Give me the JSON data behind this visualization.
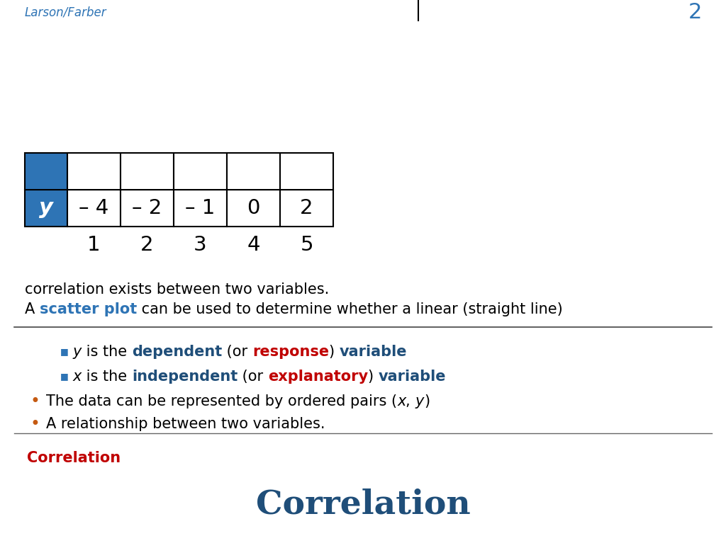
{
  "title": "Correlation",
  "title_color": "#1F4E79",
  "title_fontsize": 34,
  "bg_color": "#FFFFFF",
  "section_heading": "Correlation",
  "section_heading_color": "#C00000",
  "scatter_color": "#2E74B5",
  "table_x_vals": [
    "1",
    "2",
    "3",
    "4",
    "5"
  ],
  "table_y_vals": [
    "– 4",
    "– 2",
    "– 1",
    "0",
    "2"
  ],
  "scatter_x": [
    1,
    2,
    3,
    4,
    5
  ],
  "scatter_y": [
    -4,
    -2,
    -1,
    0,
    2
  ],
  "table_header_bg": "#2E74B5",
  "table_header_text": "#FFFFFF",
  "table_border": "#000000",
  "footer_text": "Larson/Farber",
  "footer_color": "#2E74B5",
  "page_num": "2",
  "red_color": "#C00000",
  "blue_color": "#1F4E79",
  "body_text_color": "#000000",
  "bullet_color": "#C55A11",
  "sub_bullet_color": "#2E74B5",
  "fs_body": 15,
  "fs_sub": 15,
  "fs_title": 34,
  "fs_heading": 15
}
